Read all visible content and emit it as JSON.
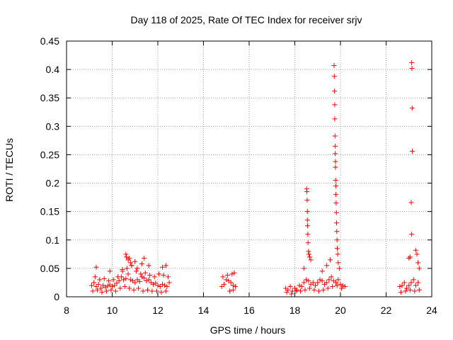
{
  "chart_data": {
    "type": "scatter",
    "title": "Day 118 of 2025, Rate Of TEC Index for receiver srjv",
    "xlabel": "GPS time / hours",
    "ylabel": "ROTI / TECUs",
    "xlim": [
      8,
      24
    ],
    "ylim": [
      0,
      0.45
    ],
    "xticks": [
      8,
      10,
      12,
      14,
      16,
      18,
      20,
      22,
      24
    ],
    "yticks": [
      0,
      0.05,
      0.1,
      0.15,
      0.2,
      0.25,
      0.3,
      0.35,
      0.4,
      0.45
    ],
    "ytick_labels": [
      "0",
      "0.05",
      "0.1",
      "0.15",
      "0.2",
      "0.25",
      "0.3",
      "0.35",
      "0.4",
      "0.45"
    ],
    "grid": true,
    "marker": "+",
    "color": "#ff0000",
    "series": [
      {
        "name": "ROTI",
        "x": [
          9.1,
          9.2,
          9.3,
          9.4,
          9.5,
          9.6,
          9.7,
          9.8,
          9.9,
          10.0,
          10.1,
          10.2,
          10.3,
          10.4,
          10.5,
          10.6,
          10.7,
          10.8,
          10.9,
          11.0,
          11.1,
          11.2,
          11.3,
          11.4,
          11.5,
          11.6,
          11.7,
          11.8,
          11.9,
          12.0,
          12.1,
          12.2,
          12.3,
          12.4,
          12.5,
          9.15,
          9.35,
          9.55,
          9.75,
          9.95,
          10.15,
          10.35,
          10.55,
          10.75,
          10.95,
          11.15,
          11.35,
          11.55,
          11.75,
          11.95,
          12.15,
          12.35,
          9.25,
          9.45,
          9.65,
          9.85,
          10.05,
          10.25,
          10.45,
          10.65,
          10.85,
          11.05,
          11.25,
          11.45,
          11.65,
          11.85,
          12.05,
          12.25,
          12.45,
          10.6,
          10.62,
          10.7,
          10.75,
          10.8,
          10.85,
          11.0,
          11.1,
          11.3,
          11.4,
          11.6,
          12.2,
          12.35,
          9.3,
          9.9,
          10.45,
          14.8,
          14.9,
          15.0,
          15.1,
          15.2,
          15.3,
          15.4,
          14.85,
          15.05,
          15.25,
          15.35,
          15.15,
          15.3,
          17.6,
          17.7,
          17.8,
          17.9,
          18.0,
          18.1,
          18.2,
          18.3,
          18.4,
          18.5,
          18.6,
          18.7,
          18.8,
          18.9,
          19.0,
          19.1,
          19.2,
          19.3,
          19.4,
          19.5,
          19.6,
          19.7,
          19.8,
          19.9,
          20.0,
          20.1,
          20.2,
          17.65,
          17.85,
          18.05,
          18.25,
          18.45,
          18.65,
          18.85,
          19.05,
          19.25,
          19.45,
          19.65,
          19.85,
          20.05,
          18.52,
          18.53,
          18.54,
          18.55,
          18.55,
          18.56,
          18.57,
          18.58,
          18.6,
          18.62,
          18.65,
          18.7,
          18.4,
          19.2,
          19.4,
          19.55,
          19.72,
          19.73,
          19.74,
          19.75,
          19.75,
          19.76,
          19.77,
          19.77,
          19.78,
          19.78,
          19.79,
          19.8,
          19.8,
          19.81,
          19.82,
          19.83,
          19.84,
          19.85,
          19.86,
          19.88,
          19.9,
          19.95,
          22.6,
          22.7,
          22.8,
          22.9,
          23.0,
          23.1,
          23.2,
          23.3,
          23.4,
          22.65,
          22.85,
          23.05,
          23.25,
          23.45,
          23.12,
          23.13,
          23.14,
          23.15,
          23.1,
          23.12,
          23.05,
          23.0,
          23.3,
          23.35,
          23.4,
          23.45
        ],
        "y": [
          0.02,
          0.025,
          0.018,
          0.022,
          0.015,
          0.02,
          0.017,
          0.019,
          0.021,
          0.018,
          0.02,
          0.024,
          0.028,
          0.035,
          0.03,
          0.032,
          0.04,
          0.03,
          0.028,
          0.025,
          0.03,
          0.027,
          0.035,
          0.033,
          0.028,
          0.03,
          0.025,
          0.022,
          0.024,
          0.02,
          0.018,
          0.022,
          0.02,
          0.018,
          0.025,
          0.01,
          0.012,
          0.008,
          0.01,
          0.012,
          0.01,
          0.015,
          0.018,
          0.015,
          0.012,
          0.015,
          0.01,
          0.012,
          0.01,
          0.01,
          0.008,
          0.01,
          0.035,
          0.03,
          0.032,
          0.028,
          0.03,
          0.035,
          0.045,
          0.05,
          0.055,
          0.045,
          0.04,
          0.042,
          0.038,
          0.035,
          0.04,
          0.038,
          0.035,
          0.075,
          0.07,
          0.065,
          0.068,
          0.06,
          0.055,
          0.062,
          0.05,
          0.058,
          0.068,
          0.055,
          0.052,
          0.055,
          0.052,
          0.045,
          0.048,
          0.018,
          0.022,
          0.03,
          0.028,
          0.025,
          0.02,
          0.018,
          0.035,
          0.038,
          0.04,
          0.042,
          0.01,
          0.012,
          0.015,
          0.012,
          0.018,
          0.01,
          0.015,
          0.012,
          0.02,
          0.018,
          0.025,
          0.03,
          0.028,
          0.022,
          0.025,
          0.02,
          0.025,
          0.03,
          0.028,
          0.022,
          0.025,
          0.03,
          0.035,
          0.028,
          0.025,
          0.03,
          0.022,
          0.02,
          0.018,
          0.008,
          0.005,
          0.01,
          0.01,
          0.012,
          0.015,
          0.012,
          0.01,
          0.012,
          0.015,
          0.018,
          0.02,
          0.015,
          0.19,
          0.185,
          0.17,
          0.15,
          0.135,
          0.125,
          0.11,
          0.095,
          0.08,
          0.075,
          0.07,
          0.065,
          0.05,
          0.045,
          0.055,
          0.065,
          0.407,
          0.388,
          0.362,
          0.338,
          0.313,
          0.283,
          0.265,
          0.252,
          0.238,
          0.228,
          0.205,
          0.195,
          0.18,
          0.165,
          0.148,
          0.13,
          0.115,
          0.1,
          0.085,
          0.075,
          0.06,
          0.05,
          0.018,
          0.02,
          0.025,
          0.015,
          0.02,
          0.025,
          0.03,
          0.02,
          0.025,
          0.008,
          0.01,
          0.012,
          0.01,
          0.012,
          0.412,
          0.402,
          0.332,
          0.256,
          0.166,
          0.11,
          0.07,
          0.068,
          0.082,
          0.075,
          0.06,
          0.05
        ]
      }
    ]
  }
}
